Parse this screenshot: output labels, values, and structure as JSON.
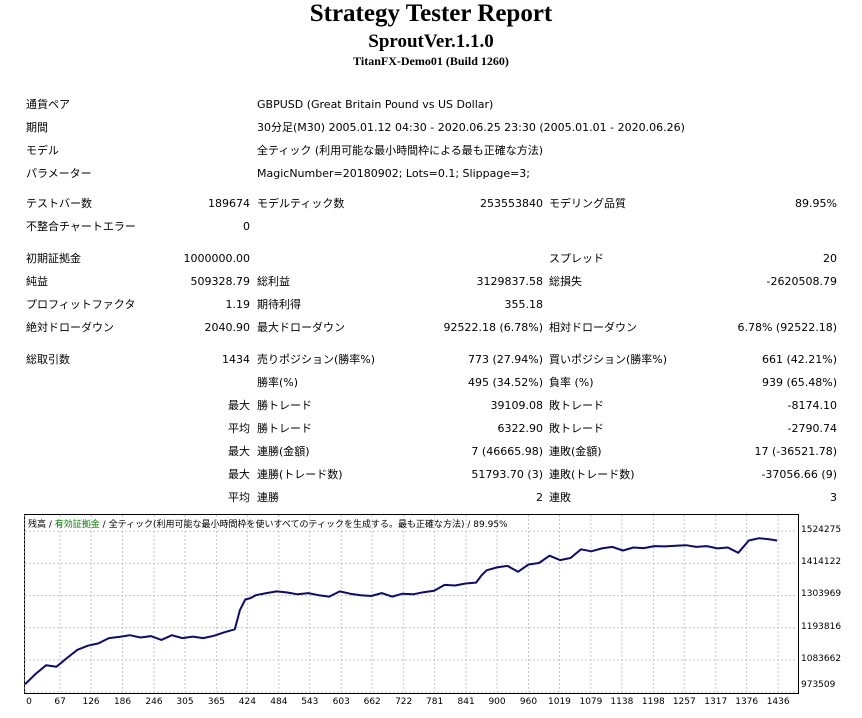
{
  "header": {
    "title": "Strategy Tester Report",
    "subtitle": "SproutVer.1.1.0",
    "server": "TitanFX-Demo01 (Build 1260)"
  },
  "info": [
    {
      "label": "通貨ペア",
      "value": "GBPUSD (Great Britain Pound vs US Dollar)"
    },
    {
      "label": "期間",
      "value": "30分足(M30) 2005.01.12 04:30 - 2020.06.25 23:30 (2005.01.01 - 2020.06.26)"
    },
    {
      "label": "モデル",
      "value": "全ティック (利用可能な最小時間枠による最も正確な方法)"
    },
    {
      "label": "パラメーター",
      "value": "MagicNumber=20180902; Lots=0.1; Slippage=3;"
    }
  ],
  "stats": {
    "bars_label": "テストバー数",
    "bars": "189674",
    "ticks_label": "モデルティック数",
    "ticks": "253553840",
    "quality_label": "モデリング品質",
    "quality": "89.95%",
    "errors_label": "不整合チャートエラー",
    "errors": "0",
    "deposit_label": "初期証拠金",
    "deposit": "1000000.00",
    "spread_label": "スプレッド",
    "spread": "20",
    "net_label": "純益",
    "net": "509328.79",
    "gross_profit_label": "総利益",
    "gross_profit": "3129837.58",
    "gross_loss_label": "総損失",
    "gross_loss": "-2620508.79",
    "pf_label": "プロフィットファクタ",
    "pf": "1.19",
    "expected_label": "期待利得",
    "expected": "355.18",
    "abs_dd_label": "絶対ドローダウン",
    "abs_dd": "2040.90",
    "max_dd_label": "最大ドローダウン",
    "max_dd": "92522.18 (6.78%)",
    "rel_dd_label": "相対ドローダウン",
    "rel_dd": "6.78% (92522.18)",
    "trades_label": "総取引数",
    "trades": "1434",
    "short_label": "売りポジション(勝率%)",
    "short": "773 (27.94%)",
    "long_label": "買いポジション(勝率%)",
    "long": "661 (42.21%)",
    "win_label": "勝率(%)",
    "win": "495 (34.52%)",
    "loss_label": "負率 (%)",
    "loss": "939 (65.48%)",
    "max_word": "最大",
    "avg_word": "平均",
    "big_win_label": "勝トレード",
    "big_win": "39109.08",
    "big_loss_label": "敗トレード",
    "big_loss": "-8174.10",
    "avg_win_label": "勝トレード",
    "avg_win": "6322.90",
    "avg_loss_label": "敗トレード",
    "avg_loss": "-2790.74",
    "cons_win_label": "連勝(金額)",
    "cons_win": "7 (46665.98)",
    "cons_loss_label": "連敗(金額)",
    "cons_loss": "17 (-36521.78)",
    "cons_profit_label": "連勝(トレード数)",
    "cons_profit": "51793.70 (3)",
    "cons_loss2_label": "連敗(トレード数)",
    "cons_loss2": "-37056.66 (9)",
    "avg_cons_win_label": "連勝",
    "avg_cons_win": "2",
    "avg_cons_loss_label": "連敗",
    "avg_cons_loss": "3"
  },
  "chart_legend": {
    "balance": "残高",
    "sep1": " / ",
    "equity": "有効証拠金",
    "sep2": " / ",
    "model": "全ティック(利用可能な最小時間枠を使いすべてのティックを生成する。最も正確な方法)",
    "sep3": " / ",
    "quality": "89.95%"
  },
  "colors": {
    "line": "#0a0a7a",
    "equity": "#008000",
    "grid": "#c8c8c8"
  },
  "chart_data": {
    "type": "line",
    "series": [
      {
        "name": "残高"
      }
    ],
    "x_ticks": [
      "0",
      "67",
      "126",
      "186",
      "246",
      "305",
      "365",
      "424",
      "484",
      "543",
      "603",
      "662",
      "722",
      "781",
      "841",
      "900",
      "960",
      "1019",
      "1079",
      "1138",
      "1198",
      "1257",
      "1317",
      "1376",
      "1436"
    ],
    "y_ticks": [
      "1524275",
      "1414122",
      "1303969",
      "1193816",
      "1083662",
      "973509"
    ],
    "xlim": [
      0,
      1470
    ],
    "ylim": [
      973509,
      1579352
    ],
    "x": [
      0,
      20,
      40,
      60,
      80,
      100,
      120,
      140,
      160,
      180,
      200,
      220,
      240,
      260,
      280,
      300,
      320,
      340,
      360,
      380,
      400,
      410,
      420,
      430,
      440,
      460,
      480,
      500,
      520,
      540,
      560,
      580,
      600,
      620,
      640,
      660,
      680,
      700,
      720,
      740,
      760,
      780,
      800,
      820,
      840,
      860,
      870,
      880,
      900,
      920,
      940,
      960,
      980,
      1000,
      1020,
      1040,
      1060,
      1080,
      1100,
      1120,
      1140,
      1160,
      1180,
      1200,
      1220,
      1240,
      1260,
      1280,
      1300,
      1320,
      1340,
      1360,
      1380,
      1400,
      1420,
      1434
    ],
    "y": [
      1000000,
      1035000,
      1065000,
      1060000,
      1090000,
      1118000,
      1132000,
      1140000,
      1158000,
      1162000,
      1168000,
      1160000,
      1165000,
      1152000,
      1168000,
      1158000,
      1163000,
      1158000,
      1166000,
      1178000,
      1188000,
      1255000,
      1290000,
      1295000,
      1305000,
      1312000,
      1318000,
      1314000,
      1308000,
      1312000,
      1305000,
      1300000,
      1318000,
      1310000,
      1305000,
      1302000,
      1312000,
      1300000,
      1310000,
      1308000,
      1315000,
      1320000,
      1340000,
      1338000,
      1345000,
      1348000,
      1372000,
      1390000,
      1400000,
      1405000,
      1385000,
      1410000,
      1415000,
      1440000,
      1425000,
      1432000,
      1462000,
      1455000,
      1465000,
      1470000,
      1458000,
      1468000,
      1466000,
      1473000,
      1472000,
      1474000,
      1476000,
      1470000,
      1473000,
      1465000,
      1468000,
      1450000,
      1492000,
      1500000,
      1496000,
      1492000
    ]
  }
}
